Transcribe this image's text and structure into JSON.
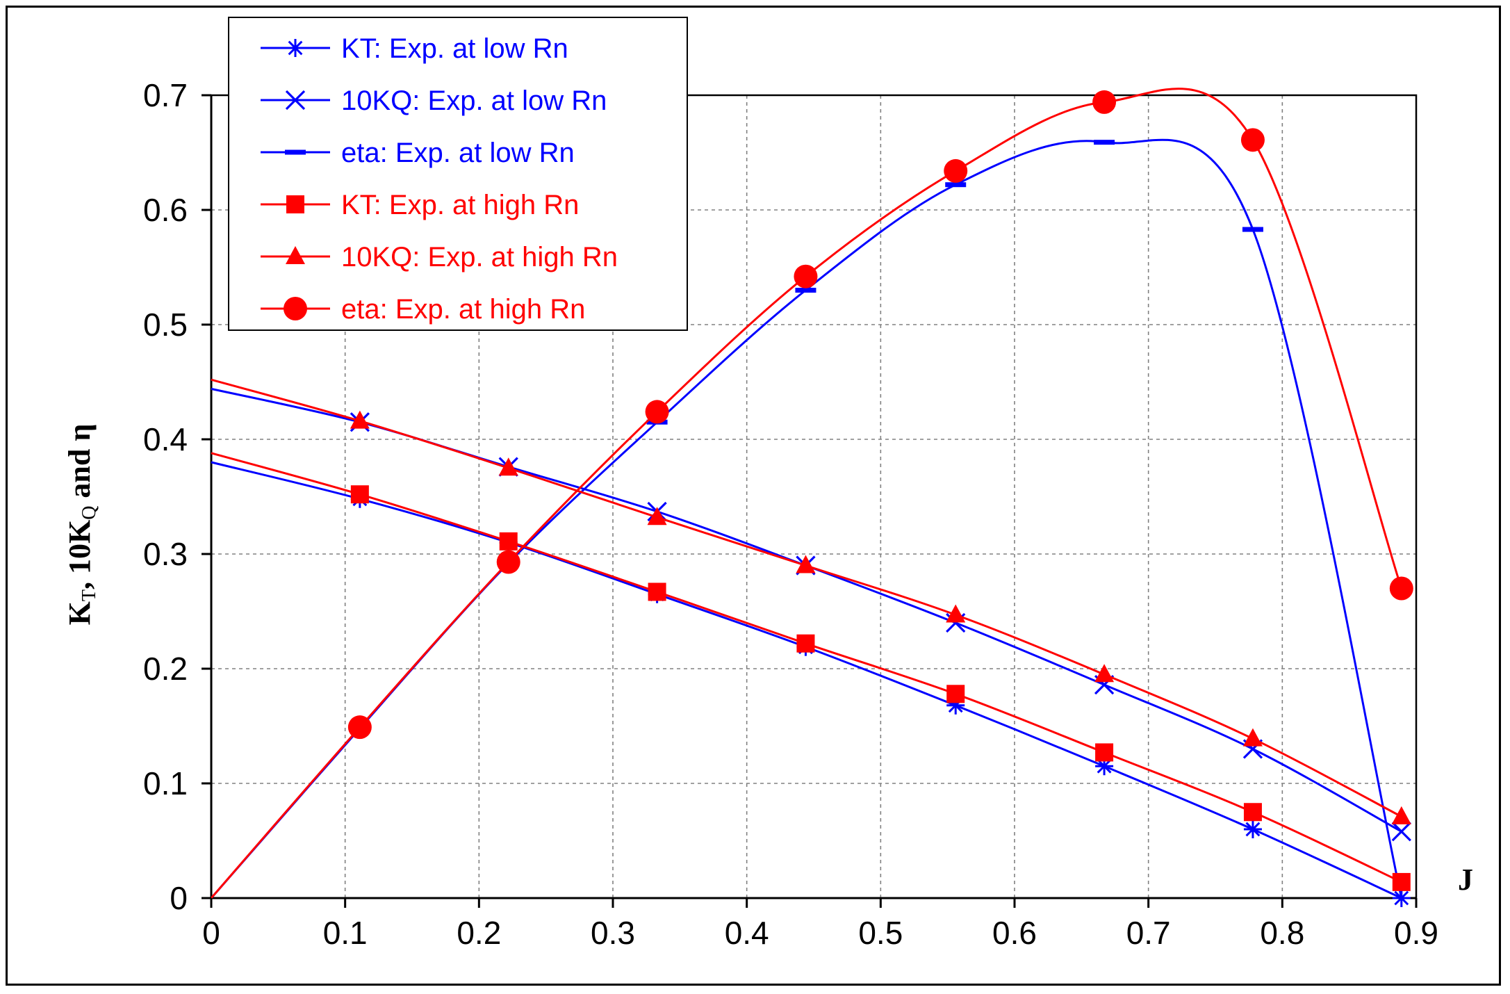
{
  "chart_data": {
    "type": "line",
    "title": "",
    "xlabel": "J",
    "ylabel_parts": {
      "k": "K",
      "k_sub": "T",
      "mid": ", 10K",
      "q_sub": "Q",
      "end": " and η"
    },
    "xlim": [
      0,
      0.9
    ],
    "ylim": [
      0,
      0.7
    ],
    "x_ticks": [
      "0",
      "0.1",
      "0.2",
      "0.3",
      "0.4",
      "0.5",
      "0.6",
      "0.7",
      "0.8",
      "0.9"
    ],
    "y_ticks": [
      "0",
      "0.1",
      "0.2",
      "0.3",
      "0.4",
      "0.5",
      "0.6",
      "0.7"
    ],
    "grid": true,
    "legend_position": "top-left",
    "series": [
      {
        "name": "KT: Exp. at low Rn",
        "color": "#0000ff",
        "marker": "asterisk",
        "marker_x": [
          0.111,
          0.222,
          0.333,
          0.444,
          0.556,
          0.667,
          0.778,
          0.889
        ],
        "marker_y": [
          0.348,
          0.31,
          0.265,
          0.219,
          0.168,
          0.115,
          0.06,
          0.0
        ],
        "curve_x": [
          0,
          0.111,
          0.222,
          0.333,
          0.444,
          0.556,
          0.667,
          0.778,
          0.889
        ],
        "curve_y": [
          0.38,
          0.348,
          0.31,
          0.265,
          0.219,
          0.168,
          0.115,
          0.06,
          0.0
        ]
      },
      {
        "name": "10KQ: Exp. at low Rn",
        "color": "#0000ff",
        "marker": "x",
        "marker_x": [
          0.111,
          0.222,
          0.333,
          0.444,
          0.556,
          0.667,
          0.778,
          0.889
        ],
        "marker_y": [
          0.415,
          0.376,
          0.337,
          0.29,
          0.24,
          0.186,
          0.13,
          0.058
        ],
        "curve_x": [
          0,
          0.111,
          0.222,
          0.333,
          0.444,
          0.556,
          0.667,
          0.778,
          0.889
        ],
        "curve_y": [
          0.444,
          0.415,
          0.376,
          0.337,
          0.29,
          0.24,
          0.186,
          0.13,
          0.058
        ]
      },
      {
        "name": "eta: Exp. at low Rn",
        "color": "#0000ff",
        "marker": "dash",
        "marker_x": [
          0.111,
          0.222,
          0.333,
          0.444,
          0.556,
          0.667,
          0.778
        ],
        "marker_y": [
          0.148,
          0.292,
          0.415,
          0.53,
          0.622,
          0.659,
          0.583
        ],
        "curve_x": [
          0,
          0.111,
          0.222,
          0.333,
          0.444,
          0.556,
          0.667,
          0.778,
          0.889
        ],
        "curve_y": [
          0.0,
          0.148,
          0.292,
          0.415,
          0.53,
          0.622,
          0.659,
          0.583,
          0.0
        ]
      },
      {
        "name": "KT: Exp. at high Rn",
        "color": "#ff0000",
        "marker": "square",
        "marker_x": [
          0.111,
          0.222,
          0.333,
          0.444,
          0.556,
          0.667,
          0.778,
          0.889
        ],
        "marker_y": [
          0.352,
          0.311,
          0.267,
          0.222,
          0.178,
          0.127,
          0.075,
          0.014
        ],
        "curve_x": [
          0,
          0.111,
          0.222,
          0.333,
          0.444,
          0.556,
          0.667,
          0.778,
          0.889
        ],
        "curve_y": [
          0.388,
          0.352,
          0.311,
          0.267,
          0.222,
          0.178,
          0.127,
          0.075,
          0.014
        ]
      },
      {
        "name": "10KQ: Exp. at high Rn",
        "color": "#ff0000",
        "marker": "triangle",
        "marker_x": [
          0.111,
          0.222,
          0.333,
          0.444,
          0.556,
          0.667,
          0.778,
          0.889
        ],
        "marker_y": [
          0.416,
          0.375,
          0.332,
          0.29,
          0.247,
          0.195,
          0.139,
          0.071
        ],
        "curve_x": [
          0,
          0.111,
          0.222,
          0.333,
          0.444,
          0.556,
          0.667,
          0.778,
          0.889
        ],
        "curve_y": [
          0.452,
          0.416,
          0.375,
          0.332,
          0.29,
          0.247,
          0.195,
          0.139,
          0.071
        ]
      },
      {
        "name": "eta: Exp. at high Rn",
        "color": "#ff0000",
        "marker": "circle",
        "marker_x": [
          0.111,
          0.222,
          0.333,
          0.444,
          0.556,
          0.667,
          0.778,
          0.889
        ],
        "marker_y": [
          0.149,
          0.293,
          0.424,
          0.542,
          0.634,
          0.694,
          0.661,
          0.27
        ],
        "curve_x": [
          0,
          0.111,
          0.222,
          0.333,
          0.444,
          0.556,
          0.667,
          0.778,
          0.889
        ],
        "curve_y": [
          0.0,
          0.149,
          0.293,
          0.424,
          0.542,
          0.634,
          0.694,
          0.661,
          0.27
        ]
      }
    ]
  }
}
